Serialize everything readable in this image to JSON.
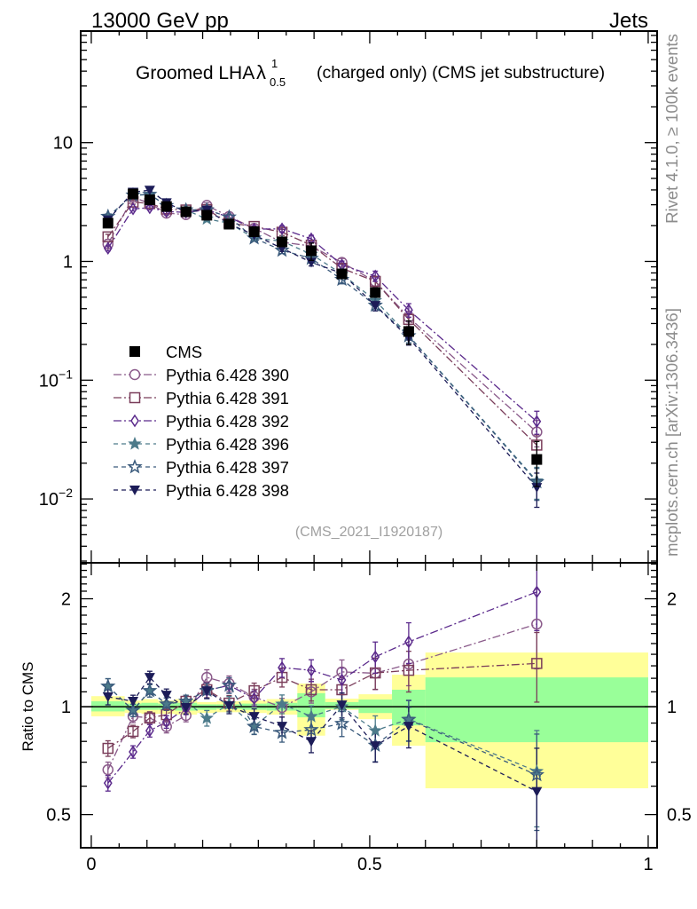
{
  "header": {
    "left_label": "13000 GeV pp",
    "right_label": "Jets"
  },
  "side_labels": {
    "rivet": "Rivet 4.1.0, ≥ 100k events",
    "mcplots": "mcplots.cern.ch [arXiv:1306.3436]"
  },
  "chart_data": {
    "type": "scatter",
    "title": {
      "main": "Groomed LHA",
      "symbol": "λ",
      "sup": "1",
      "sub": "0.5",
      "rest": "(charged only) (CMS jet substructure)"
    },
    "watermark": "(CMS_2021_I1920187)",
    "xlabel": "",
    "xlim": [
      -0.019,
      1.016
    ],
    "x_ticks": [
      {
        "value": 0,
        "label": "0"
      },
      {
        "value": 0.5,
        "label": "0.5"
      },
      {
        "value": 1,
        "label": "1"
      }
    ],
    "x": [
      0.03,
      0.075,
      0.105,
      0.135,
      0.17,
      0.2075,
      0.2475,
      0.2925,
      0.3425,
      0.395,
      0.45,
      0.51,
      0.57,
      0.8
    ],
    "bin_edges": [
      0,
      0.06,
      0.09,
      0.12,
      0.15,
      0.19,
      0.225,
      0.27,
      0.315,
      0.37,
      0.42,
      0.48,
      0.54,
      0.6,
      1.0
    ],
    "main": {
      "yscale": "log",
      "ylabel": "",
      "ylim": [
        0.0029,
        87
      ],
      "y_ticks": [
        {
          "value": 10,
          "base": "10",
          "exp": ""
        },
        {
          "value": 1,
          "base": "1",
          "exp": ""
        },
        {
          "value": 0.1,
          "base": "10",
          "exp": "−1"
        },
        {
          "value": 0.01,
          "base": "10",
          "exp": "−2"
        }
      ]
    },
    "ratio": {
      "yscale": "log",
      "ylabel": "Ratio to CMS",
      "ylim": [
        0.404,
        2.52
      ],
      "reference_line": 1,
      "y_ticks": [
        {
          "value": 0.5,
          "label": "0.5"
        },
        {
          "value": 1,
          "label": "1"
        },
        {
          "value": 2,
          "label": "2"
        }
      ]
    },
    "band_colors": {
      "total": "#ffff99",
      "stat": "#99ff99"
    },
    "reference": {
      "name": "CMS",
      "color": "#000000",
      "marker": "square-filled",
      "values": [
        2.1,
        3.7,
        3.3,
        2.9,
        2.62,
        2.45,
        2.06,
        1.78,
        1.46,
        1.23,
        0.785,
        0.547,
        0.257,
        0.0215
      ],
      "band_total": [
        [
          0.94,
          1.07
        ],
        [
          0.96,
          1.04
        ],
        [
          0.955,
          1.05
        ],
        [
          0.955,
          1.04
        ],
        [
          0.95,
          1.05
        ],
        [
          0.96,
          1.03
        ],
        [
          0.965,
          1.035
        ],
        [
          0.96,
          1.04
        ],
        [
          0.95,
          1.05
        ],
        [
          0.83,
          1.16
        ],
        [
          0.98,
          1.053
        ],
        [
          0.923,
          1.083
        ],
        [
          0.778,
          1.228
        ],
        [
          0.592,
          1.416
        ]
      ],
      "band_stat": [
        [
          0.97,
          1.035
        ],
        [
          0.98,
          1.02
        ],
        [
          0.98,
          1.025
        ],
        [
          0.98,
          1.02
        ],
        [
          0.975,
          1.025
        ],
        [
          0.98,
          1.015
        ],
        [
          0.985,
          1.015
        ],
        [
          0.98,
          1.02
        ],
        [
          0.975,
          1.025
        ],
        [
          0.934,
          1.09
        ],
        [
          0.985,
          1.03
        ],
        [
          0.96,
          1.047
        ],
        [
          0.887,
          1.115
        ],
        [
          0.796,
          1.207
        ]
      ]
    },
    "series": [
      {
        "name": "Pythia 6.428 390",
        "color": "#8a5a8a",
        "marker": "circle-open",
        "line": "dash-dot",
        "values": [
          1.4,
          3.48,
          3.07,
          2.55,
          2.48,
          2.96,
          2.39,
          1.9,
          1.45,
          1.35,
          0.98,
          0.678,
          0.338,
          0.0366
        ],
        "ratio": [
          0.667,
          0.94,
          0.93,
          0.88,
          0.945,
          1.207,
          1.16,
          1.065,
          0.995,
          1.1,
          1.25,
          1.24,
          1.315,
          1.7
        ],
        "rel_err": [
          0.05,
          0.04,
          0.04,
          0.04,
          0.04,
          0.05,
          0.05,
          0.05,
          0.06,
          0.07,
          0.08,
          0.1,
          0.13,
          0.25
        ]
      },
      {
        "name": "Pythia 6.428 391",
        "color": "#7a3d5a",
        "marker": "square-open",
        "line": "dash-dot",
        "values": [
          1.61,
          3.16,
          3.07,
          2.76,
          2.71,
          2.73,
          2.11,
          1.97,
          1.76,
          1.37,
          0.875,
          0.679,
          0.325,
          0.0284
        ],
        "ratio": [
          0.765,
          0.853,
          0.93,
          0.95,
          1.035,
          1.115,
          1.023,
          1.108,
          1.207,
          1.115,
          1.115,
          1.242,
          1.263,
          1.32
        ],
        "rel_err": [
          0.05,
          0.04,
          0.04,
          0.04,
          0.04,
          0.05,
          0.05,
          0.05,
          0.06,
          0.07,
          0.08,
          0.1,
          0.13,
          0.22
        ]
      },
      {
        "name": "Pythia 6.428 392",
        "color": "#5b2a8c",
        "marker": "diamond-open",
        "line": "dash-dot",
        "values": [
          1.29,
          2.77,
          2.83,
          2.63,
          2.59,
          2.72,
          2.36,
          1.87,
          1.88,
          1.55,
          0.932,
          0.753,
          0.39,
          0.0449
        ],
        "ratio": [
          0.612,
          0.748,
          0.857,
          0.907,
          0.99,
          1.11,
          1.147,
          1.053,
          1.285,
          1.263,
          1.187,
          1.377,
          1.517,
          2.09
        ],
        "rel_err": [
          0.05,
          0.04,
          0.04,
          0.04,
          0.04,
          0.05,
          0.05,
          0.05,
          0.06,
          0.07,
          0.08,
          0.1,
          0.13,
          0.22
        ]
      },
      {
        "name": "Pythia 6.428 396",
        "color": "#4c7a8a",
        "marker": "star-filled",
        "line": "dashed",
        "values": [
          2.39,
          3.61,
          3.66,
          2.95,
          2.71,
          2.28,
          2.1,
          1.57,
          1.48,
          1.15,
          0.785,
          0.469,
          0.237,
          0.0142
        ],
        "ratio": [
          1.14,
          0.977,
          1.108,
          1.017,
          1.035,
          0.929,
          1.017,
          0.882,
          1.017,
          0.939,
          1.0,
          0.857,
          0.923,
          0.66
        ],
        "rel_err": [
          0.05,
          0.04,
          0.04,
          0.04,
          0.04,
          0.05,
          0.05,
          0.05,
          0.06,
          0.07,
          0.08,
          0.1,
          0.13,
          0.3
        ]
      },
      {
        "name": "Pythia 6.428 397",
        "color": "#3a5a7c",
        "marker": "star-open",
        "line": "dashed",
        "values": [
          2.39,
          3.61,
          3.66,
          2.95,
          2.71,
          2.72,
          2.36,
          1.57,
          1.24,
          1.06,
          0.704,
          0.427,
          0.236,
          0.0139
        ],
        "ratio": [
          1.14,
          0.977,
          1.108,
          1.017,
          1.035,
          1.11,
          1.147,
          0.88,
          0.847,
          0.862,
          0.897,
          0.78,
          0.92,
          0.645
        ],
        "rel_err": [
          0.05,
          0.04,
          0.04,
          0.04,
          0.04,
          0.05,
          0.05,
          0.05,
          0.06,
          0.07,
          0.08,
          0.1,
          0.13,
          0.3
        ]
      },
      {
        "name": "Pythia 6.428 398",
        "color": "#1c1c58",
        "marker": "triangle-down-filled",
        "line": "dashed",
        "values": [
          2.24,
          3.83,
          3.98,
          3.12,
          2.61,
          2.71,
          2.07,
          1.67,
          1.29,
          0.984,
          0.794,
          0.426,
          0.227,
          0.0125
        ],
        "ratio": [
          1.065,
          1.035,
          1.207,
          1.077,
          0.995,
          1.108,
          1.006,
          0.939,
          0.882,
          0.8,
          1.011,
          0.778,
          0.882,
          0.58
        ],
        "rel_err": [
          0.05,
          0.04,
          0.04,
          0.04,
          0.04,
          0.05,
          0.05,
          0.05,
          0.06,
          0.07,
          0.08,
          0.1,
          0.13,
          0.32
        ]
      }
    ],
    "legend": {
      "position": "middle-left"
    }
  }
}
